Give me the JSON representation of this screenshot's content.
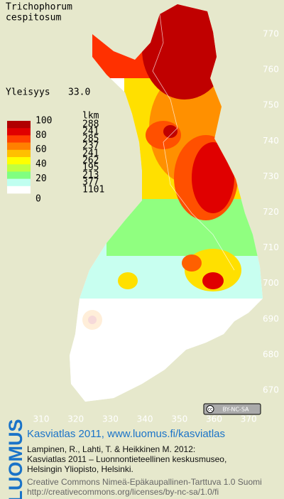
{
  "species": [
    "Trichophorum",
    "cespitosum"
  ],
  "frequency_label": "Yleisyys",
  "frequency_value": "33.0",
  "legend": {
    "scale_labels": [
      "100",
      "80",
      "60",
      "40",
      "20",
      "0"
    ],
    "count_header": "lkm",
    "counts": [
      "288",
      "241",
      "285",
      "237",
      "241",
      "262",
      "195",
      "213",
      "377",
      "1101"
    ]
  },
  "northing_labels": [
    "770",
    "760",
    "750",
    "740",
    "730",
    "720",
    "710",
    "700",
    "690",
    "680",
    "670"
  ],
  "easting_labels": [
    "310",
    "320",
    "330",
    "340",
    "350",
    "360",
    "370"
  ],
  "license_badge": "BY-NC-SA",
  "logo": "LUOMUS",
  "footer": {
    "heading": "Kasviatlas 2011, www.luomus.fi/kasviatlas",
    "citation": [
      "Lampinen, R., Lahti, T. & Heikkinen M. 2012:",
      "Kasviatlas 2011 – Luonnontieteellinen keskusmuseo,",
      "Helsingin Yliopisto, Helsinki."
    ],
    "license": [
      "Creative Commons Nimeä-Epäkaupallinen-Tarttuva 1.0 Suomi",
      "http://creativecommons.org/licenses/by-nc-sa/1.0/fi"
    ]
  }
}
